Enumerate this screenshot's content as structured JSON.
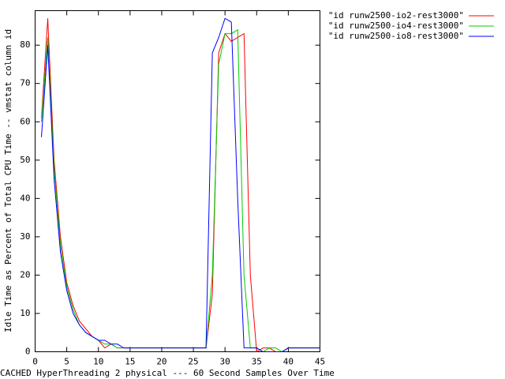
{
  "chart_data": {
    "type": "line",
    "xlabel": "CACHED HyperThreading 2 physical --- 60 Second Samples Over Time",
    "ylabel": "Idle Time as Percent of Total CPU Time -- vmstat column id",
    "x": [
      1,
      2,
      3,
      4,
      5,
      6,
      7,
      8,
      9,
      10,
      11,
      12,
      13,
      14,
      15,
      16,
      17,
      18,
      19,
      20,
      21,
      22,
      23,
      24,
      25,
      26,
      27,
      28,
      29,
      30,
      31,
      32,
      33,
      34,
      35,
      36,
      37,
      38,
      39,
      40,
      41,
      42,
      43,
      44,
      45
    ],
    "series": [
      {
        "name": "\"id runw2500-io2-rest3000\"",
        "color": "#ff0000",
        "values": [
          61,
          87,
          50,
          30,
          18,
          12,
          8,
          6,
          4,
          3,
          1,
          2,
          1,
          1,
          1,
          1,
          1,
          1,
          1,
          1,
          1,
          1,
          1,
          1,
          1,
          1,
          1,
          15,
          78,
          83,
          81,
          82,
          83,
          20,
          0,
          1,
          1,
          0,
          0,
          1,
          1,
          1,
          1,
          1,
          1
        ]
      },
      {
        "name": "\"id runw2500-io4-rest3000\"",
        "color": "#00cc00",
        "values": [
          60,
          82,
          48,
          28,
          17,
          11,
          7,
          5,
          4,
          3,
          2,
          2,
          1,
          1,
          1,
          1,
          1,
          1,
          1,
          1,
          1,
          1,
          1,
          1,
          1,
          1,
          1,
          20,
          75,
          83,
          83,
          84,
          20,
          1,
          1,
          0,
          1,
          1,
          0,
          1,
          1,
          1,
          1,
          1,
          1
        ]
      },
      {
        "name": "\"id runw2500-io8-rest3000\"",
        "color": "#0000ff",
        "values": [
          56,
          80,
          45,
          26,
          16,
          10,
          7,
          5,
          4,
          3,
          3,
          2,
          2,
          1,
          1,
          1,
          1,
          1,
          1,
          1,
          1,
          1,
          1,
          1,
          1,
          1,
          1,
          78,
          82,
          87,
          86,
          40,
          1,
          1,
          1,
          0,
          0,
          0,
          0,
          1,
          1,
          1,
          1,
          1,
          1
        ]
      }
    ],
    "xlim": [
      0,
      45
    ],
    "xticks": [
      0,
      5,
      10,
      15,
      20,
      25,
      30,
      35,
      40,
      45
    ],
    "ylim": [
      0,
      89
    ],
    "yticks": [
      0,
      10,
      20,
      30,
      40,
      50,
      60,
      70,
      80
    ],
    "legend": "top-right"
  }
}
